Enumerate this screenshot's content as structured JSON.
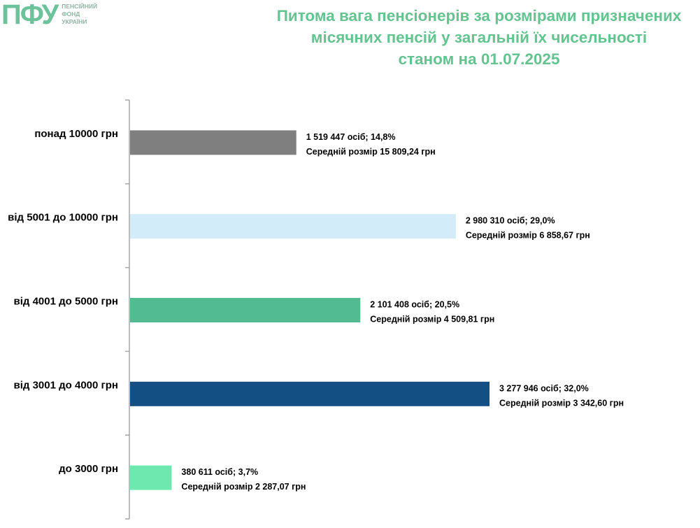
{
  "logo": {
    "mark": "ПФУ",
    "lines": [
      "ПЕНСІЙНИЙ",
      "ФОНД",
      "УКРАЇНИ"
    ]
  },
  "title_lines": [
    "Питома вага пенсіонерів за розмірами призначених",
    "місячних пенсій у загальній їх чисельності",
    "станом на 01.07.2025"
  ],
  "chart_data": {
    "type": "bar",
    "orientation": "horizontal",
    "title": "Питома вага пенсіонерів за розмірами призначених місячних пенсій у загальній їх чисельності станом на 01.07.2025",
    "categories": [
      "понад 10000 грн",
      "від 5001 до 10000 грн",
      "від 4001 до 5000 грн",
      "від 3001 до 4000 грн",
      "до 3000 грн"
    ],
    "values": [
      14.8,
      29.0,
      20.5,
      32.0,
      3.7
    ],
    "persons": [
      1519447,
      2980310,
      2101408,
      3277946,
      380611
    ],
    "average_pension": [
      15809.24,
      6858.67,
      4509.81,
      3342.6,
      2287.07
    ],
    "label_line1": [
      "1 519 447 осіб;  14,8%",
      "2 980 310 осіб; 29,0%",
      "2 101 408 осіб; 20,5%",
      "3 277 946 осіб; 32,0%",
      "380 611 осіб; 3,7%"
    ],
    "label_line2": [
      "Середній розмір 15 809,24 грн",
      "Середній розмір 6 858,67 грн",
      "Середній розмір 4 509,81 грн",
      "Середній розмір 3 342,60 грн",
      "Середній розмір 2 287,07 грн"
    ],
    "colors": [
      "#7f7f7f",
      "#d3ecfa",
      "#52bb92",
      "#134f83",
      "#6fe8b0"
    ],
    "axis_color": "#a6a6a6",
    "xlim": [
      0,
      32.0
    ],
    "grid": false,
    "legend": "none"
  }
}
